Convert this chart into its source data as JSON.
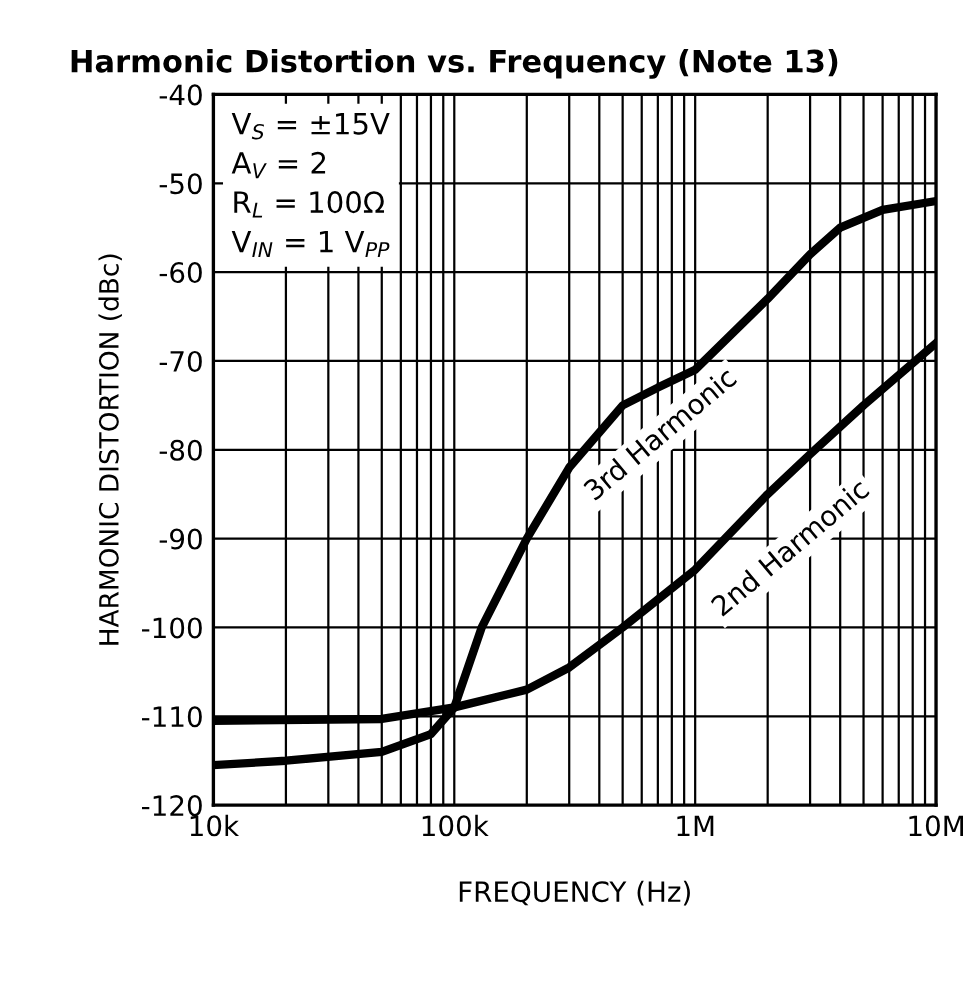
{
  "chart_data": {
    "type": "line",
    "title": "Harmonic Distortion vs. Frequency (Note 13)",
    "xlabel": "FREQUENCY (Hz)",
    "ylabel": "HARMONIC DISTORTION (dBc)",
    "log": "x",
    "xlim": [
      10000,
      10000000
    ],
    "ylim": [
      -120,
      -40
    ],
    "xticks": [
      {
        "value": 10000,
        "label": "10k"
      },
      {
        "value": 100000,
        "label": "100k"
      },
      {
        "value": 1000000,
        "label": "1M"
      },
      {
        "value": 10000000,
        "label": "10M"
      }
    ],
    "yticks": [
      -120,
      -110,
      -100,
      -90,
      -80,
      -70,
      -60,
      -50,
      -40
    ],
    "grid": true,
    "legend": false,
    "marker": "none",
    "line_style": "solid",
    "series": [
      {
        "name": "3rd Harmonic",
        "color": "#000000",
        "x": [
          10000,
          20000,
          50000,
          80000,
          100000,
          130000,
          200000,
          300000,
          500000,
          700000,
          1000000,
          2000000,
          3000000,
          4000000,
          6000000,
          10000000
        ],
        "values": [
          -115.5,
          -115,
          -114,
          -112,
          -109,
          -100,
          -90,
          -82,
          -75,
          -73,
          -71,
          -63,
          -58,
          -55,
          -53,
          -52
        ]
      },
      {
        "name": "2nd Harmonic",
        "color": "#000000",
        "x": [
          10000,
          50000,
          100000,
          200000,
          300000,
          500000,
          1000000,
          2000000,
          3000000,
          5000000,
          10000000
        ],
        "values": [
          -110.5,
          -110.3,
          -109,
          -107,
          -104.5,
          -100,
          -93.5,
          -85,
          -80.5,
          -75,
          -68
        ]
      }
    ],
    "annotations": [
      "V$_{S}$ = ±15V",
      "A$_{V}$ = 2",
      "R$_{L}$ = 100Ω",
      "V$_{IN}$ = 1 V$_{PP}$"
    ]
  }
}
